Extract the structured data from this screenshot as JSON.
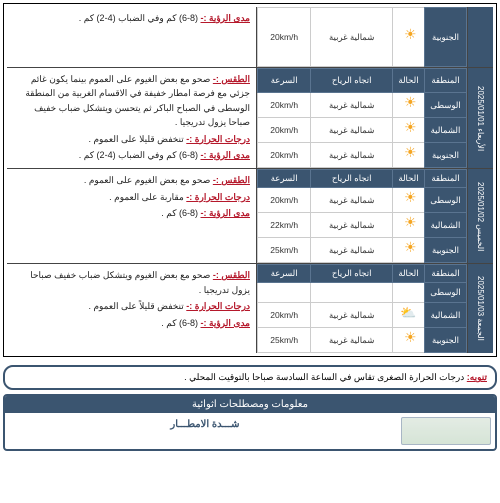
{
  "headers": {
    "region": "المنطقة",
    "cond": "الحالة",
    "wind_dir": "اتجاه الرياح",
    "speed": "السرعة"
  },
  "regions": {
    "center": "الوسطى",
    "north": "الشمالية",
    "south": "الجنوبية"
  },
  "wind": "شمالية غربية",
  "days": [
    {
      "date": "",
      "partial": true,
      "rows": [
        {
          "region": "south",
          "icon": "sun",
          "speed": "20km/h"
        }
      ],
      "desc": [
        {
          "label": "مدى الرؤية :-",
          "text": " (8-6) كم وفي الضباب (4-2) كم ."
        }
      ]
    },
    {
      "date": "الأربعاء 2025/01/01",
      "rows": [
        {
          "region": "center",
          "icon": "sun",
          "speed": "20km/h"
        },
        {
          "region": "north",
          "icon": "sun",
          "speed": "20km/h"
        },
        {
          "region": "south",
          "icon": "sun",
          "speed": "20km/h"
        }
      ],
      "desc": [
        {
          "label": "الطقس :-",
          "text": " صحو مع  بعض الغيوم  على العموم  بينما يكون  غائم جزئي  مع فرصة  امطار خفيفة  في الاقسام  الغربية من  المنطقة الوسطى في الصباح الباكر ثم يتحسن ويتشكل ضباب خفيف صباحا يزول تدريجيا ."
        },
        {
          "label": "درجات الحرارة :-",
          "text": " تنخفض قليلا على العموم ."
        },
        {
          "label": "مدى الرؤية :-",
          "text": " (8-6) كم وفي الضباب (4-2) كم ."
        }
      ]
    },
    {
      "date": "الخميس 2025/01/02",
      "rows": [
        {
          "region": "center",
          "icon": "sun",
          "speed": "20km/h"
        },
        {
          "region": "north",
          "icon": "sun",
          "speed": "22km/h"
        },
        {
          "region": "south",
          "icon": "sun",
          "speed": "25km/h"
        }
      ],
      "desc": [
        {
          "label": "الطقس :-",
          "text": " صحو مع بعض الغيوم على العموم ."
        },
        {
          "label": "درجات الحرارة :-",
          "text": " مقاربة على العموم ."
        },
        {
          "label": "مدى الرؤية :-",
          "text": " (8-6) كم ."
        }
      ]
    },
    {
      "date": "الجمعة 2025/01/03",
      "rows": [
        {
          "region": "center",
          "icon": "sun",
          "speed": "",
          "empty": true
        },
        {
          "region": "north",
          "icon": "cloud",
          "speed": "20km/h"
        },
        {
          "region": "south",
          "icon": "sun",
          "speed": "25km/h"
        }
      ],
      "desc": [
        {
          "label": "الطقس :-",
          "text": " صحو  مع بعض الغيوم ويتشكل ضباب خفيف صباحا يزول تدريجيا ."
        },
        {
          "label": "درجات الحرارة :-",
          "text": " تنخفض قليلاً على العموم ."
        },
        {
          "label": "مدى الرؤية :-",
          "text": " (8-6) كم ."
        }
      ]
    }
  ],
  "note": {
    "label": "تنويه:",
    "text": " درجات الحرارة الصغرى تقاس في الساعة السادسة صباحا بالتوقيت المحلي ."
  },
  "footer": {
    "title": "معلومات ومصطلحات اثوائية",
    "rain_label": "شـــدة الامطـــار"
  }
}
